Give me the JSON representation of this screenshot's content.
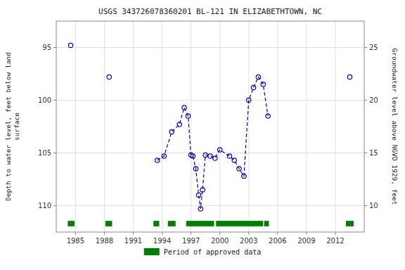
{
  "chart_data": {
    "type": "scatter",
    "title": "USGS 343726078360201 BL-121 IN ELIZABETHTOWN, NC",
    "ylabel": "Depth to water level, feet below land\nsurface",
    "y2label": "Groundwater level above NGVD 1929, feet",
    "x": [
      1984.5,
      1988.5,
      1993.5,
      1994.2,
      1995.0,
      1995.8,
      1996.3,
      1996.7,
      1997.0,
      1997.2,
      1997.5,
      1997.8,
      1998.0,
      1998.2,
      1998.5,
      1999.0,
      1999.5,
      2000.0,
      2001.0,
      2001.5,
      2002.0,
      2002.5,
      2003.0,
      2003.5,
      2004.0,
      2004.5,
      2005.0,
      2013.5
    ],
    "series": [
      {
        "type": "line",
        "line_style": "dashed",
        "color": "#0000cc",
        "x": [
          1993.5,
          1994.2,
          1995.0,
          1995.8,
          1996.3,
          1996.7,
          1997.0,
          1997.2,
          1997.5,
          1997.8,
          1998.0,
          1998.2,
          1998.5,
          1999.0,
          1999.5,
          2000.0,
          2001.0,
          2001.5,
          2002.0,
          2002.5,
          2003.0,
          2003.5,
          2004.0,
          2004.5,
          2005.0
        ],
        "values": [
          105.7,
          105.3,
          103.0,
          102.3,
          100.7,
          101.5,
          105.2,
          105.3,
          106.5,
          109.0,
          110.3,
          108.5,
          105.2,
          105.3,
          105.5,
          104.7,
          105.3,
          105.7,
          106.5,
          107.2,
          100.0,
          98.8,
          97.8,
          98.5,
          101.5
        ]
      },
      {
        "type": "scatter",
        "marker": "circle",
        "color": "#0000cc",
        "values": [
          94.8,
          97.8,
          105.7,
          105.3,
          103.0,
          102.3,
          100.7,
          101.5,
          105.2,
          105.3,
          106.5,
          109.0,
          110.3,
          108.5,
          105.2,
          105.3,
          105.5,
          104.7,
          105.3,
          105.7,
          106.5,
          107.2,
          100.0,
          98.8,
          97.8,
          98.5,
          101.5,
          97.8
        ]
      },
      {
        "type": "span",
        "name": "Period of approved data",
        "color": "#008000",
        "spans": [
          [
            1984.2,
            1984.9
          ],
          [
            1988.1,
            1988.8
          ],
          [
            1993.1,
            1993.7
          ],
          [
            1994.6,
            1995.4
          ],
          [
            1996.5,
            1999.4
          ],
          [
            1999.6,
            2004.5
          ],
          [
            2004.6,
            2005.1
          ],
          [
            2013.1,
            2013.9
          ]
        ]
      }
    ],
    "xlim": [
      1983.0,
      2015.0
    ],
    "xticks": [
      1985,
      1988,
      1991,
      1994,
      1997,
      2000,
      2003,
      2006,
      2009,
      2012
    ],
    "ylim": [
      112.5,
      92.5
    ],
    "yticks": [
      95,
      100,
      105,
      110
    ],
    "y2lim": [
      7.5,
      27.5
    ],
    "y2ticks": [
      10,
      15,
      20,
      25
    ],
    "grid": true,
    "legend": "bottom"
  }
}
